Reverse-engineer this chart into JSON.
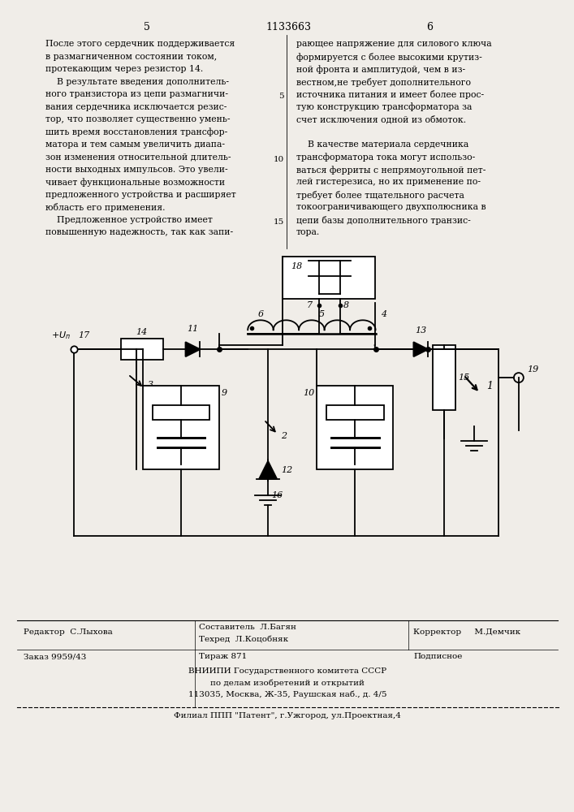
{
  "page_width": 7.07,
  "page_height": 10.0,
  "bg_color": "#f0ede8",
  "header_patent_num": "1133663",
  "header_page_left": "5",
  "header_page_right": "6",
  "col_left_text": [
    "После этого сердечник поддерживается",
    "в размагниченном состоянии током,",
    "протекающим через резистор 14.",
    "    В результате введения дополнитель-",
    "ного транзистора из цепи размагничи-",
    "вания сердечника исключается резис-",
    "тор, что позволяет существенно умень-",
    "шить время восстановления трансфор-",
    "матора и тем самым увеличить диапа-",
    "зон изменения относительной длитель-",
    "ности выходных импульсов. Это увели-",
    "чивает функциональные возможности",
    "предложенного устройства и расширяет",
    "юбласть его применения.",
    "    Предложенное устройство имеет",
    "повышенную надежность, так как запи-"
  ],
  "col_right_text": [
    "рающее напряжение для силового ключа",
    "формируется с более высокими крутиз-",
    "ной фронта и амплитудой, чем в из-",
    "вестном,не требует дополнительного",
    "источника питания и имеет более прос-",
    "тую конструкцию трансформатора за",
    "счет исключения одной из обмоток.",
    "",
    "    В качестве материала сердечника",
    "трансформатора тока могут использо-",
    "ваться ферриты с непрямоугольной пет-",
    "лей гистерезиса, но их применение по-",
    "требует более тщательного расчета",
    "токоограничивающего двухполюсника в",
    "цепи базы дополнительного транзис-",
    "тора."
  ],
  "footer_editor": "Редактор  С.Лыхова",
  "footer_composer_line1": "Составитель  Л.Багян",
  "footer_composer_line2": "Техред  Л.Коцобняк",
  "footer_corrector": "Корректор     М.Демчик",
  "footer_order": "Заказ 9959/43",
  "footer_tirazh": "Тираж 871",
  "footer_podp": "Подписное",
  "footer_vniiipi": "ВНИИПИ Государственного комитета СССР",
  "footer_vniiipi2": "по делам изобретений и открытий",
  "footer_address": "113035, Москва, Ж-35, Раушская наб., д. 4/5",
  "footer_filial": "Филиал ППП \"Патент\", г.Ужгород, ул.Проектная,4"
}
